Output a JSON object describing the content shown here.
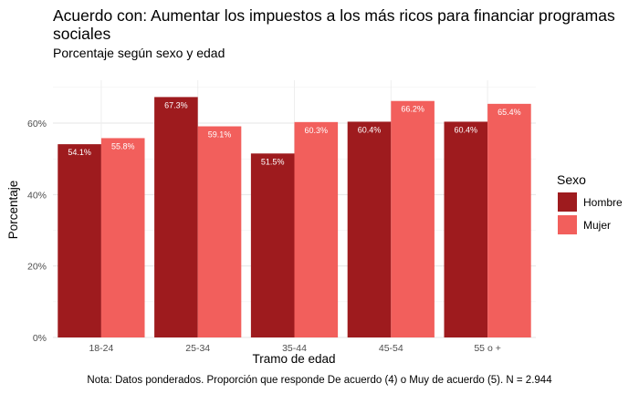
{
  "chart_data": {
    "type": "bar",
    "title": "Acuerdo con: Aumentar los impuestos a los más ricos para financiar programas sociales",
    "subtitle": "Porcentaje según sexo y edad",
    "xlabel": "Tramo de edad",
    "ylabel": "Porcentaje",
    "caption": "Nota: Datos ponderados. Proporción que responde De acuerdo (4) o Muy de acuerdo (5). N = 2.944",
    "categories": [
      "18-24",
      "25-34",
      "35-44",
      "45-54",
      "55 o +"
    ],
    "series": [
      {
        "name": "Hombre",
        "color": "#9e1b1e",
        "values": [
          54.1,
          67.3,
          51.5,
          60.4,
          60.4
        ],
        "labels": [
          "54.1%",
          "67.3%",
          "51.5%",
          "60.4%",
          "60.4%"
        ]
      },
      {
        "name": "Mujer",
        "color": "#f25f5c",
        "values": [
          55.8,
          59.1,
          60.3,
          66.2,
          65.4
        ],
        "labels": [
          "55.8%",
          "59.1%",
          "60.3%",
          "66.2%",
          "65.4%"
        ]
      }
    ],
    "ylim": [
      0,
      72
    ],
    "yticks": [
      0,
      20,
      40,
      60
    ],
    "ytick_labels": [
      "0%",
      "20%",
      "40%",
      "60%"
    ],
    "legend": {
      "title": "Sexo",
      "position": "right"
    },
    "grid": true
  }
}
